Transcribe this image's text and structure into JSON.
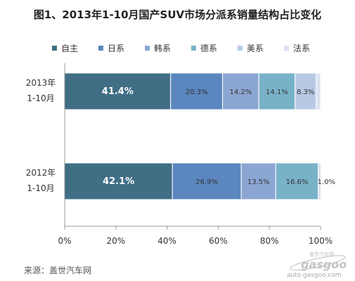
{
  "chart_data": {
    "type": "bar",
    "stacked": true,
    "orientation": "horizontal",
    "percent_stacked": true,
    "title": "图1、2013年1-10月国产SUV市场分派系销量结构占比变化",
    "categories": [
      [
        "2013年",
        "1-10月"
      ],
      [
        "2012年",
        "1-10月"
      ]
    ],
    "series": [
      {
        "name": "自主",
        "values": [
          41.4,
          42.1
        ],
        "color": "#3f6e85",
        "labels": [
          "41.4%",
          "42.1%"
        ]
      },
      {
        "name": "日系",
        "values": [
          20.3,
          26.9
        ],
        "color": "#5b86bf",
        "labels": [
          "20.3%",
          "26.9%"
        ]
      },
      {
        "name": "韩系",
        "values": [
          14.2,
          13.5
        ],
        "color": "#8ca6d3",
        "labels": [
          "14.2%",
          "13.5%"
        ]
      },
      {
        "name": "德系",
        "values": [
          14.1,
          16.6
        ],
        "color": "#78b2c8",
        "labels": [
          "14.1%",
          "16.6%"
        ]
      },
      {
        "name": "美系",
        "values": [
          8.3,
          0.0
        ],
        "color": "#b8c9e4",
        "labels": [
          "8.3%",
          ""
        ]
      },
      {
        "name": "法系",
        "values": [
          1.7,
          1.0
        ],
        "color": "#d9e2ef",
        "labels": [
          "",
          "1.0%"
        ]
      }
    ],
    "xlim": [
      0,
      100
    ],
    "xticks": [
      "0%",
      "20%",
      "40%",
      "60%",
      "80%",
      "100%"
    ],
    "legend_position": "top",
    "grid": false
  },
  "source": "来源：盖世汽车网",
  "watermark": {
    "brand_cn": "盖世汽车网",
    "brand_en": "gasgoo",
    "url": "auto.gasgoo.com"
  }
}
